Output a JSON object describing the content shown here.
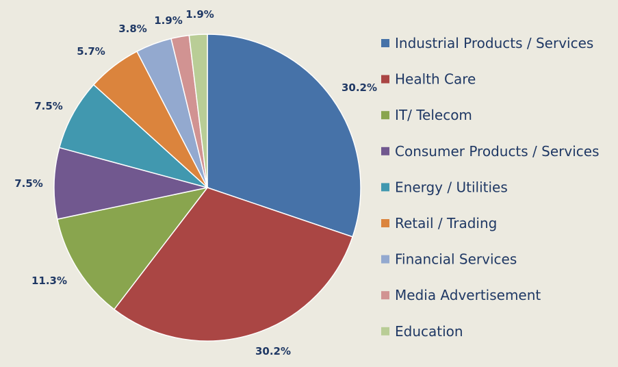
{
  "chart_data": {
    "type": "pie",
    "title": "",
    "legend_position": "right",
    "unit": "%",
    "slices": [
      {
        "label": "Industrial Products / Services",
        "value": 30.2,
        "value_label": "30.2%",
        "color": "#4672A8"
      },
      {
        "label": "Health Care",
        "value": 30.2,
        "value_label": "30.2%",
        "color": "#AA4644"
      },
      {
        "label": "IT/ Telecom",
        "value": 11.3,
        "value_label": "11.3%",
        "color": "#89A54E"
      },
      {
        "label": "Consumer Products / Services",
        "value": 7.5,
        "value_label": "7.5%",
        "color": "#71588F"
      },
      {
        "label": "Energy / Utilities",
        "value": 7.5,
        "value_label": "7.5%",
        "color": "#4198AF"
      },
      {
        "label": "Retail / Trading",
        "value": 5.7,
        "value_label": "5.7%",
        "color": "#DB843D"
      },
      {
        "label": "Financial Services",
        "value": 3.8,
        "value_label": "3.8%",
        "color": "#93A9CF"
      },
      {
        "label": "Media Advertisement",
        "value": 1.9,
        "value_label": "1.9%",
        "color": "#D19392"
      },
      {
        "label": "Education",
        "value": 1.9,
        "value_label": "1.9%",
        "color": "#B9CD96"
      }
    ]
  }
}
